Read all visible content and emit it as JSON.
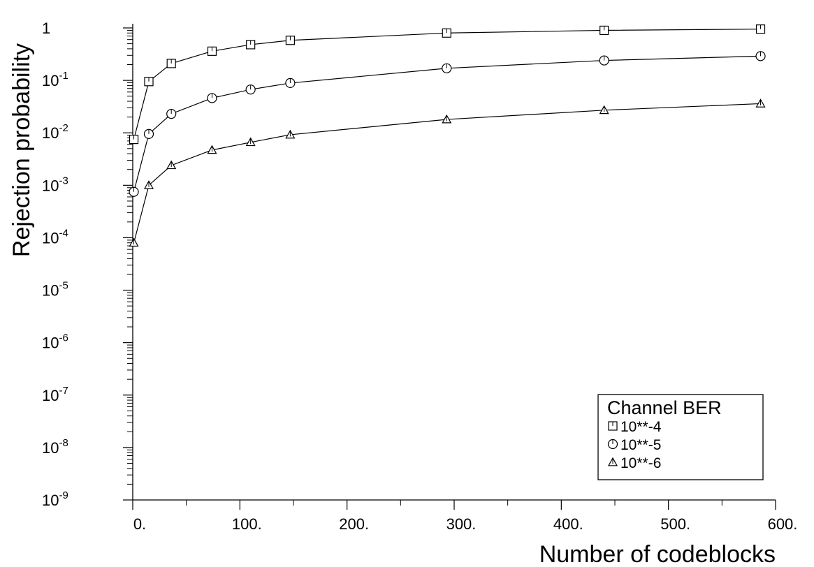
{
  "chart_data": {
    "type": "line",
    "xlabel": "Number of codeblocks",
    "ylabel": "Rejection probability",
    "xlim": [
      0,
      600
    ],
    "ylim_log10": [
      -9,
      0
    ],
    "y_scale": "log",
    "grid": false,
    "x_ticks": [
      {
        "value": 0,
        "label": "0."
      },
      {
        "value": 100,
        "label": "100."
      },
      {
        "value": 200,
        "label": "200."
      },
      {
        "value": 300,
        "label": "300."
      },
      {
        "value": 400,
        "label": "400."
      },
      {
        "value": 500,
        "label": "500."
      },
      {
        "value": 600,
        "label": "600."
      }
    ],
    "y_ticks": [
      {
        "exp": 0,
        "base": "1",
        "sup": ""
      },
      {
        "exp": -1,
        "base": "10",
        "sup": "-1"
      },
      {
        "exp": -2,
        "base": "10",
        "sup": "-2"
      },
      {
        "exp": -3,
        "base": "10",
        "sup": "-3"
      },
      {
        "exp": -4,
        "base": "10",
        "sup": "-4"
      },
      {
        "exp": -5,
        "base": "10",
        "sup": "-5"
      },
      {
        "exp": -6,
        "base": "10",
        "sup": "-6"
      },
      {
        "exp": -7,
        "base": "10",
        "sup": "-7"
      },
      {
        "exp": -8,
        "base": "10",
        "sup": "-8"
      },
      {
        "exp": -9,
        "base": "10",
        "sup": "-9"
      }
    ],
    "legend": {
      "title": "Channel BER",
      "placement": "bottom-right"
    },
    "series": [
      {
        "name": "10**-4",
        "marker": "square",
        "x": [
          1,
          15,
          36,
          74,
          110,
          147,
          293,
          440,
          586
        ],
        "y": [
          0.0075,
          0.095,
          0.21,
          0.36,
          0.48,
          0.58,
          0.8,
          0.9,
          0.95
        ]
      },
      {
        "name": "10**-5",
        "marker": "circle",
        "x": [
          1,
          15,
          36,
          74,
          110,
          147,
          293,
          440,
          586
        ],
        "y": [
          0.00075,
          0.0095,
          0.023,
          0.046,
          0.067,
          0.089,
          0.17,
          0.24,
          0.29
        ]
      },
      {
        "name": "10**-6",
        "marker": "triangle",
        "x": [
          1,
          15,
          36,
          74,
          110,
          147,
          293,
          440,
          586
        ],
        "y": [
          8e-05,
          0.001,
          0.0024,
          0.0047,
          0.0066,
          0.0092,
          0.018,
          0.027,
          0.036
        ]
      }
    ]
  }
}
